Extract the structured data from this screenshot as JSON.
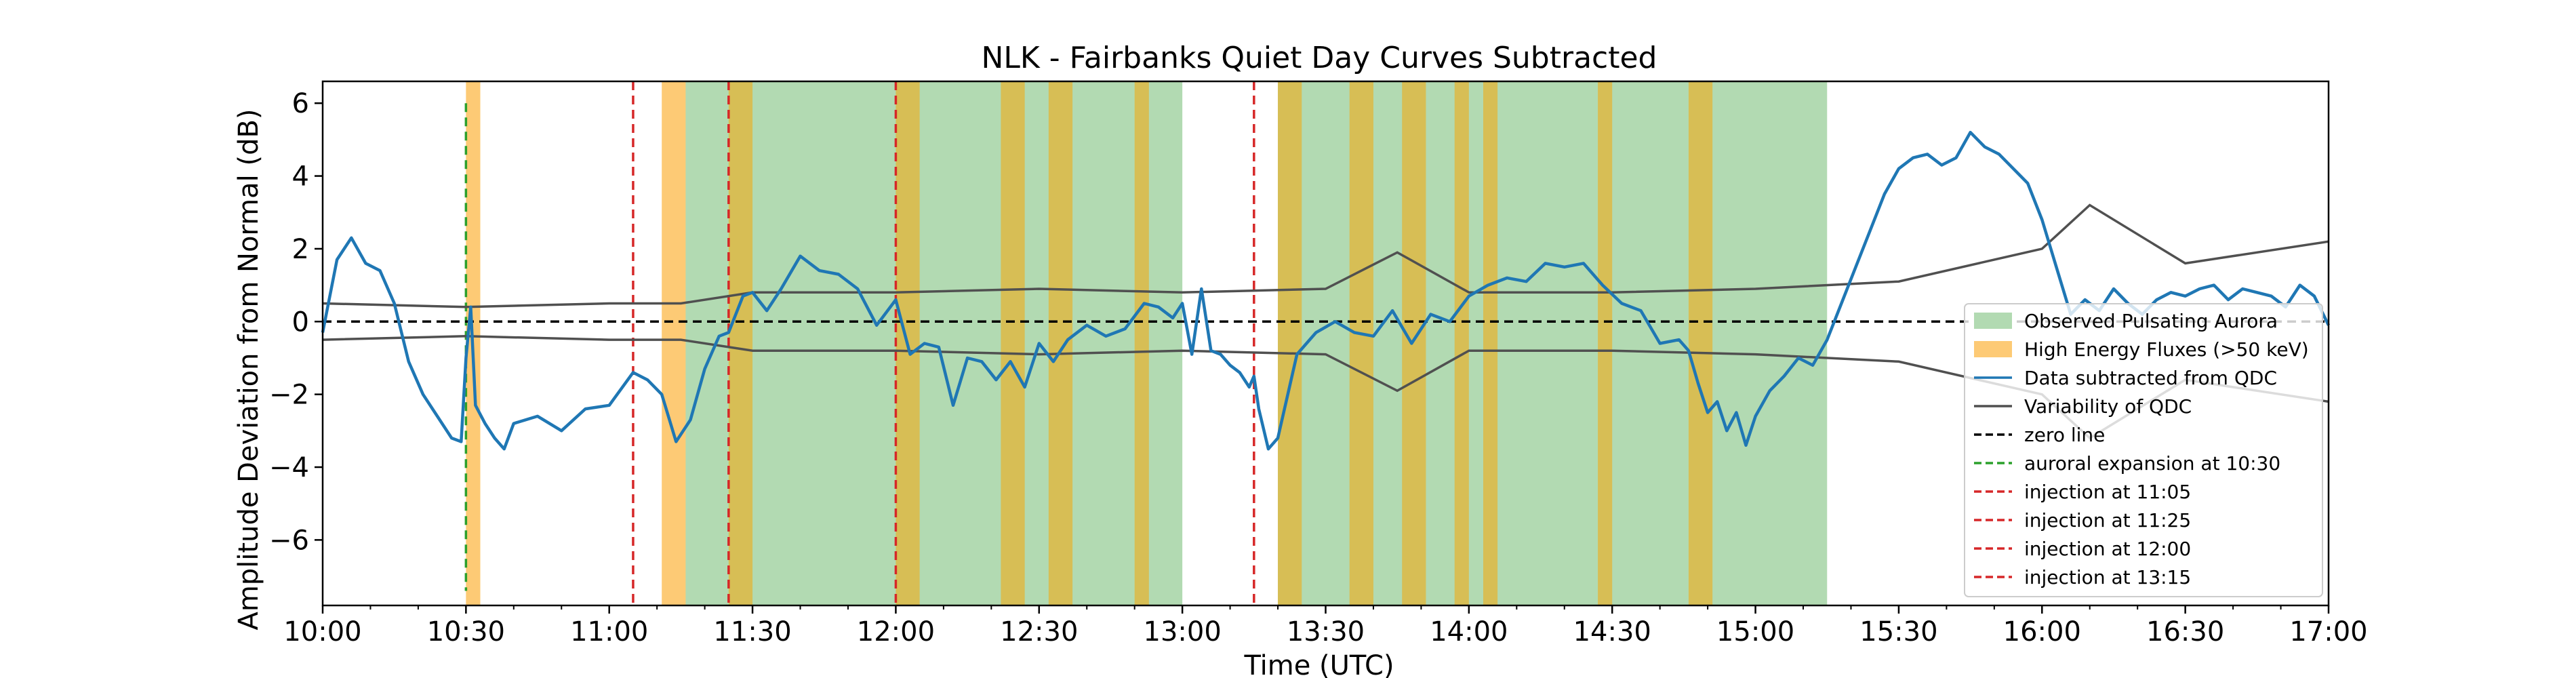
{
  "chart_data": {
    "type": "line",
    "title": "NLK - Fairbanks Quiet Day Curves Subtracted",
    "xlabel": "Time (UTC)",
    "ylabel": "Amplitude Deviation from Normal (dB)",
    "x_range": [
      "10:00",
      "17:00"
    ],
    "ylim": [
      -7.8,
      6.6
    ],
    "x_ticks": [
      "10:00",
      "10:30",
      "11:00",
      "11:30",
      "12:00",
      "12:30",
      "13:00",
      "13:30",
      "14:00",
      "14:30",
      "15:00",
      "15:30",
      "16:00",
      "16:30",
      "17:00"
    ],
    "y_ticks": [
      6,
      4,
      2,
      0,
      -2,
      -4,
      -6
    ],
    "grid": false,
    "legend_position": "lower-right",
    "colors": {
      "data": "#1f77b4",
      "qdc": "#505050",
      "zero": "#000000",
      "aurora_expansion": "#2ca02c",
      "injection": "#d62728",
      "pulsating": "#b2dab2",
      "high_energy": "#fdca75",
      "overlap": "#d7be55"
    },
    "legend": [
      {
        "label": "Observed Pulsating Aurora",
        "kind": "patch",
        "color": "#b2dab2"
      },
      {
        "label": "High Energy Fluxes (>50 keV)",
        "kind": "patch",
        "color": "#fdca75"
      },
      {
        "label": "Data subtracted from QDC",
        "kind": "line",
        "color": "#1f77b4",
        "dash": ""
      },
      {
        "label": "Variability of QDC",
        "kind": "line",
        "color": "#505050",
        "dash": ""
      },
      {
        "label": "zero line",
        "kind": "line",
        "color": "#000000",
        "dash": "12,7"
      },
      {
        "label": "auroral expansion at 10:30",
        "kind": "line",
        "color": "#2ca02c",
        "dash": "12,7"
      },
      {
        "label": "injection at 11:05",
        "kind": "line",
        "color": "#d62728",
        "dash": "12,7"
      },
      {
        "label": "injection at 11:25",
        "kind": "line",
        "color": "#d62728",
        "dash": "12,7"
      },
      {
        "label": "injection at 12:00",
        "kind": "line",
        "color": "#d62728",
        "dash": "12,7"
      },
      {
        "label": "injection at 13:15",
        "kind": "line",
        "color": "#d62728",
        "dash": "12,7"
      }
    ],
    "pulsating_aurora_intervals": [
      [
        "11:15",
        "13:00"
      ],
      [
        "13:20",
        "15:15"
      ]
    ],
    "high_energy_intervals": [
      [
        "10:30",
        "10:33"
      ],
      [
        "11:11",
        "11:16"
      ],
      [
        "11:25",
        "11:30"
      ],
      [
        "12:00",
        "12:05"
      ],
      [
        "12:22",
        "12:27"
      ],
      [
        "12:32",
        "12:37"
      ],
      [
        "12:50",
        "12:53"
      ],
      [
        "13:20",
        "13:25"
      ],
      [
        "13:35",
        "13:40"
      ],
      [
        "13:46",
        "13:51"
      ],
      [
        "13:57",
        "14:00"
      ],
      [
        "14:03",
        "14:06"
      ],
      [
        "14:27",
        "14:30"
      ],
      [
        "14:46",
        "14:51"
      ]
    ],
    "vertical_lines": [
      {
        "time": "10:30",
        "type": "auroral expansion"
      },
      {
        "time": "11:05",
        "type": "injection"
      },
      {
        "time": "11:25",
        "type": "injection"
      },
      {
        "time": "12:00",
        "type": "injection"
      },
      {
        "time": "13:15",
        "type": "injection"
      }
    ],
    "qdc_variability": {
      "x": [
        "10:00",
        "10:30",
        "11:00",
        "11:15",
        "11:30",
        "12:00",
        "12:30",
        "13:00",
        "13:30",
        "13:45",
        "14:00",
        "14:30",
        "15:00",
        "15:30",
        "16:00",
        "16:10",
        "16:30",
        "17:00"
      ],
      "upper": [
        0.5,
        0.4,
        0.5,
        0.5,
        0.8,
        0.8,
        0.9,
        0.8,
        0.9,
        1.9,
        0.8,
        0.8,
        0.9,
        1.1,
        2.0,
        3.2,
        1.6,
        2.2
      ],
      "lower": [
        -0.5,
        -0.4,
        -0.5,
        -0.5,
        -0.8,
        -0.8,
        -0.9,
        -0.8,
        -0.9,
        -1.9,
        -0.8,
        -0.8,
        -0.9,
        -1.1,
        -2.0,
        -3.2,
        -1.6,
        -2.2
      ]
    },
    "series": [
      {
        "name": "Data subtracted from QDC",
        "x": [
          "10:00",
          "10:03",
          "10:06",
          "10:09",
          "10:12",
          "10:15",
          "10:18",
          "10:21",
          "10:24",
          "10:27",
          "10:29",
          "10:30",
          "10:31",
          "10:32",
          "10:34",
          "10:36",
          "10:38",
          "10:40",
          "10:45",
          "10:50",
          "10:55",
          "11:00",
          "11:05",
          "11:08",
          "11:11",
          "11:14",
          "11:17",
          "11:20",
          "11:23",
          "11:25",
          "11:28",
          "11:30",
          "11:33",
          "11:36",
          "11:40",
          "11:44",
          "11:48",
          "11:52",
          "11:56",
          "12:00",
          "12:03",
          "12:06",
          "12:09",
          "12:12",
          "12:15",
          "12:18",
          "12:21",
          "12:24",
          "12:27",
          "12:30",
          "12:33",
          "12:36",
          "12:40",
          "12:44",
          "12:48",
          "12:52",
          "12:55",
          "12:58",
          "13:00",
          "13:02",
          "13:04",
          "13:06",
          "13:08",
          "13:10",
          "13:12",
          "13:14",
          "13:15",
          "13:16",
          "13:18",
          "13:20",
          "13:24",
          "13:28",
          "13:32",
          "13:36",
          "13:40",
          "13:44",
          "13:48",
          "13:52",
          "13:56",
          "14:00",
          "14:04",
          "14:08",
          "14:12",
          "14:16",
          "14:20",
          "14:24",
          "14:28",
          "14:32",
          "14:36",
          "14:40",
          "14:44",
          "14:46",
          "14:48",
          "14:50",
          "14:52",
          "14:54",
          "14:56",
          "14:58",
          "15:00",
          "15:03",
          "15:06",
          "15:09",
          "15:12",
          "15:15",
          "15:18",
          "15:21",
          "15:24",
          "15:27",
          "15:30",
          "15:33",
          "15:36",
          "15:39",
          "15:42",
          "15:45",
          "15:48",
          "15:51",
          "15:54",
          "15:57",
          "16:00",
          "16:03",
          "16:06",
          "16:09",
          "16:12",
          "16:15",
          "16:18",
          "16:21",
          "16:24",
          "16:27",
          "16:30",
          "16:33",
          "16:36",
          "16:39",
          "16:42",
          "16:45",
          "16:48",
          "16:51",
          "16:54",
          "16:57",
          "17:00"
        ],
        "values": [
          -0.3,
          1.7,
          2.3,
          1.6,
          1.4,
          0.5,
          -1.1,
          -2.0,
          -2.6,
          -3.2,
          -3.3,
          -1.0,
          0.4,
          -2.3,
          -2.8,
          -3.2,
          -3.5,
          -2.8,
          -2.6,
          -3.0,
          -2.4,
          -2.3,
          -1.4,
          -1.6,
          -2.0,
          -3.3,
          -2.7,
          -1.3,
          -0.4,
          -0.3,
          0.7,
          0.8,
          0.3,
          0.9,
          1.8,
          1.4,
          1.3,
          0.9,
          -0.1,
          0.6,
          -0.9,
          -0.6,
          -0.7,
          -2.3,
          -1.0,
          -1.1,
          -1.6,
          -1.1,
          -1.8,
          -0.6,
          -1.1,
          -0.5,
          -0.1,
          -0.4,
          -0.2,
          0.5,
          0.4,
          0.1,
          0.5,
          -0.9,
          0.9,
          -0.8,
          -0.9,
          -1.2,
          -1.4,
          -1.8,
          -1.5,
          -2.4,
          -3.5,
          -3.2,
          -0.9,
          -0.3,
          0.0,
          -0.3,
          -0.4,
          0.3,
          -0.6,
          0.2,
          0.0,
          0.7,
          1.0,
          1.2,
          1.1,
          1.6,
          1.5,
          1.6,
          1.0,
          0.5,
          0.3,
          -0.6,
          -0.5,
          -0.8,
          -1.7,
          -2.5,
          -2.2,
          -3.0,
          -2.5,
          -3.4,
          -2.6,
          -1.9,
          -1.5,
          -1.0,
          -1.2,
          -0.5,
          0.5,
          1.5,
          2.5,
          3.5,
          4.2,
          4.5,
          4.6,
          4.3,
          4.5,
          5.2,
          4.8,
          4.6,
          4.2,
          3.8,
          2.8,
          1.5,
          0.2,
          0.6,
          0.3,
          0.9,
          0.5,
          0.2,
          0.6,
          0.8,
          0.7,
          0.9,
          1.0,
          0.6,
          0.9,
          0.8,
          0.7,
          0.4,
          1.0,
          0.7,
          -0.1
        ]
      }
    ]
  }
}
